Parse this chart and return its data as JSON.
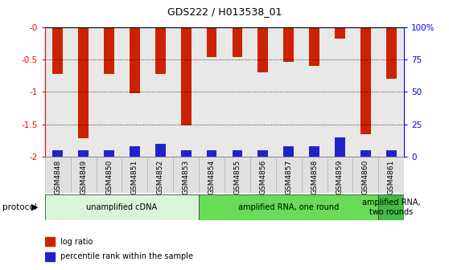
{
  "title": "GDS222 / H013538_01",
  "samples": [
    "GSM4848",
    "GSM4849",
    "GSM4850",
    "GSM4851",
    "GSM4852",
    "GSM4853",
    "GSM4854",
    "GSM4855",
    "GSM4856",
    "GSM4857",
    "GSM4858",
    "GSM4859",
    "GSM4860",
    "GSM4861"
  ],
  "log_ratio": [
    -0.72,
    -1.72,
    -0.72,
    -1.02,
    -0.72,
    -1.52,
    -0.46,
    -0.46,
    -0.7,
    -0.54,
    -0.6,
    -0.18,
    -1.65,
    -0.8
  ],
  "percentile": [
    5,
    5,
    5,
    8,
    10,
    5,
    5,
    5,
    5,
    8,
    8,
    15,
    5,
    5
  ],
  "bar_color_red": "#cc2200",
  "bar_color_blue": "#2222cc",
  "protocol_groups": [
    {
      "label": "unamplified cDNA",
      "start": 0,
      "end": 6,
      "color": "#d8f5d8"
    },
    {
      "label": "amplified RNA, one round",
      "start": 6,
      "end": 13,
      "color": "#66dd55"
    },
    {
      "label": "amplified RNA,\ntwo rounds",
      "start": 13,
      "end": 14,
      "color": "#44bb44"
    }
  ],
  "ylim": [
    -2.0,
    0.0
  ],
  "right_ticks_pct": [
    0,
    25,
    50,
    75,
    100
  ],
  "right_tick_labels": [
    "0",
    "25",
    "50",
    "75",
    "100%"
  ],
  "left_ticks": [
    -2.0,
    -1.5,
    -1.0,
    -0.5,
    0.0
  ],
  "left_tick_labels": [
    "-2",
    "-1.5",
    "-1",
    "-0.5",
    "-0"
  ],
  "protocol_label": "protocol",
  "legend_items": [
    {
      "color": "#cc2200",
      "label": "log ratio"
    },
    {
      "color": "#2222cc",
      "label": "percentile rank within the sample"
    }
  ],
  "bar_width": 0.4,
  "bg_color": "#f0f0f0",
  "plot_bg": "#ffffff"
}
